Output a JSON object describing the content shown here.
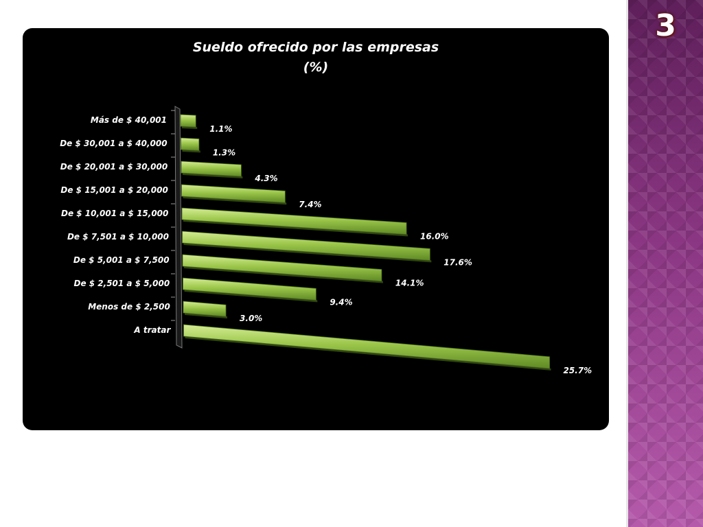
{
  "side_panel": {
    "slide_number": "3",
    "colors": {
      "top": "#5e1f5a",
      "bottom": "#b55aab"
    }
  },
  "chart_data": {
    "type": "bar",
    "orientation": "horizontal",
    "title": "Sueldo ofrecido por las empresas",
    "title_line2": "(%)",
    "categories": [
      "Más de $ 40,001",
      "De $ 30,001 a $ 40,000",
      "De $ 20,001  a $ 30,000",
      "De $ 15,001 a $ 20,000",
      "De $ 10,001 a $ 15,000",
      "De $ 7,501 a $ 10,000",
      "De $ 5,001 a $ 7,500",
      "De $ 2,501 a $ 5,000",
      "Menos de $ 2,500",
      "A tratar"
    ],
    "values": [
      1.1,
      1.3,
      4.3,
      7.4,
      16.0,
      17.6,
      14.1,
      9.4,
      3.0,
      25.7
    ],
    "value_labels": [
      "1.1%",
      "1.3%",
      "4.3%",
      "7.4%",
      "16.0%",
      "17.6%",
      "14.1%",
      "9.4%",
      "3.0%",
      "25.7%"
    ],
    "xlim": [
      0,
      26
    ],
    "bar_color": "#9bc64a",
    "background": "#000000",
    "grid": false,
    "legend": "none"
  }
}
